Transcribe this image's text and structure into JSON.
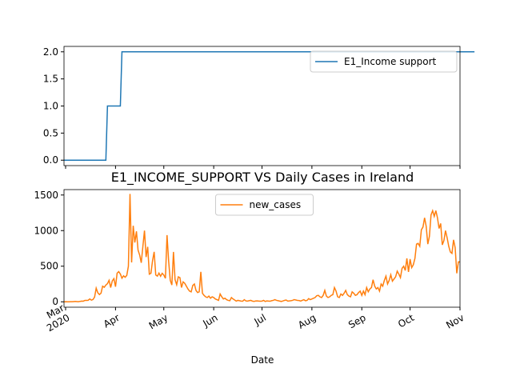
{
  "chart_data": [
    {
      "type": "line",
      "xlim": [
        0,
        246
      ],
      "ylim": [
        -0.1,
        2.1
      ],
      "yticks": [
        {
          "value": 0,
          "label": "0.0"
        },
        {
          "value": 0.5,
          "label": "0.5"
        },
        {
          "value": 1,
          "label": "1.0"
        },
        {
          "value": 1.5,
          "label": "1.5"
        },
        {
          "value": 2,
          "label": "2.0"
        }
      ],
      "legend": "upper right",
      "series": [
        {
          "name": "E1_Income support",
          "color": "#1f77b4",
          "values": [
            0,
            0,
            0,
            0,
            0,
            0,
            0,
            0,
            0,
            0,
            0,
            0,
            0,
            0,
            0,
            0,
            0,
            0,
            0,
            0,
            0,
            0,
            0,
            0,
            0,
            0,
            0,
            1,
            1,
            1,
            1,
            1,
            1,
            1,
            1,
            1,
            2,
            2,
            2,
            2,
            2,
            2,
            2,
            2,
            2,
            2,
            2,
            2,
            2,
            2,
            2,
            2,
            2,
            2,
            2,
            2,
            2,
            2,
            2,
            2,
            2,
            2,
            2,
            2,
            2,
            2,
            2,
            2,
            2,
            2,
            2,
            2,
            2,
            2,
            2,
            2,
            2,
            2,
            2,
            2,
            2,
            2,
            2,
            2,
            2,
            2,
            2,
            2,
            2,
            2,
            2,
            2,
            2,
            2,
            2,
            2,
            2,
            2,
            2,
            2,
            2,
            2,
            2,
            2,
            2,
            2,
            2,
            2,
            2,
            2,
            2,
            2,
            2,
            2,
            2,
            2,
            2,
            2,
            2,
            2,
            2,
            2,
            2,
            2,
            2,
            2,
            2,
            2,
            2,
            2,
            2,
            2,
            2,
            2,
            2,
            2,
            2,
            2,
            2,
            2,
            2,
            2,
            2,
            2,
            2,
            2,
            2,
            2,
            2,
            2,
            2,
            2,
            2,
            2,
            2,
            2,
            2,
            2,
            2,
            2,
            2,
            2,
            2,
            2,
            2,
            2,
            2,
            2,
            2,
            2,
            2,
            2,
            2,
            2,
            2,
            2,
            2,
            2,
            2,
            2,
            2,
            2,
            2,
            2,
            2,
            2,
            2,
            2,
            2,
            2,
            2,
            2,
            2,
            2,
            2,
            2,
            2,
            2,
            2,
            2,
            2,
            2,
            2,
            2,
            2,
            2,
            2,
            2,
            2,
            2,
            2,
            2,
            2,
            2,
            2,
            2,
            2,
            2,
            2,
            2,
            2,
            2,
            2,
            2,
            2,
            2,
            2,
            2,
            2,
            2,
            2,
            2,
            2,
            2,
            2,
            2,
            2,
            2,
            2,
            2,
            2,
            2,
            2,
            2,
            2,
            2,
            2,
            2,
            2,
            2,
            2,
            2,
            2,
            2,
            2,
            2
          ]
        }
      ]
    },
    {
      "type": "line",
      "title": "E1_INCOME_SUPPORT VS Daily Cases in Ireland",
      "x_label": "Date",
      "xlim": [
        0,
        246
      ],
      "ylim": [
        -76,
        1576
      ],
      "yticks": [
        0,
        500,
        1000,
        1500
      ],
      "xticks": [
        {
          "value": 1,
          "label": "Mar\n2020"
        },
        {
          "value": 32,
          "label": "Apr"
        },
        {
          "value": 62,
          "label": "May"
        },
        {
          "value": 93,
          "label": "Jun"
        },
        {
          "value": 123,
          "label": "Jul"
        },
        {
          "value": 154,
          "label": "Aug"
        },
        {
          "value": 185,
          "label": "Sep"
        },
        {
          "value": 215,
          "label": "Oct"
        },
        {
          "value": 246,
          "label": "Nov"
        }
      ],
      "legend": "upper center",
      "series": [
        {
          "name": "new_cases",
          "color": "#ff7f0e",
          "values": [
            0,
            1,
            0,
            0,
            1,
            1,
            3,
            5,
            3,
            1,
            6,
            10,
            9,
            20,
            20,
            21,
            40,
            23,
            32,
            66,
            191,
            126,
            102,
            121,
            219,
            204,
            235,
            255,
            302,
            200,
            294,
            325,
            212,
            402,
            424,
            390,
            331,
            365,
            345,
            370,
            500,
            1515,
            553,
            1068,
            832,
            990,
            727,
            657,
            548,
            779,
            1000,
            629,
            772,
            388,
            400,
            577,
            701,
            376,
            360,
            403,
            359,
            400,
            376,
            330,
            936,
            572,
            302,
            236,
            700,
            310,
            240,
            350,
            340,
            200,
            280,
            260,
            220,
            180,
            150,
            140,
            230,
            250,
            160,
            130,
            140,
            420,
            120,
            90,
            70,
            60,
            80,
            50,
            70,
            60,
            40,
            30,
            20,
            110,
            70,
            40,
            50,
            30,
            20,
            15,
            60,
            40,
            25,
            10,
            20,
            15,
            10,
            8,
            30,
            12,
            10,
            15,
            20,
            10,
            5,
            11,
            12,
            10,
            8,
            10,
            20,
            5,
            12,
            10,
            8,
            15,
            20,
            30,
            20,
            15,
            10,
            5,
            12,
            20,
            25,
            10,
            12,
            15,
            20,
            30,
            25,
            20,
            18,
            10,
            20,
            30,
            15,
            20,
            45,
            30,
            40,
            50,
            60,
            85,
            90,
            70,
            60,
            90,
            160,
            80,
            60,
            70,
            90,
            100,
            200,
            150,
            70,
            60,
            110,
            90,
            120,
            160,
            100,
            80,
            70,
            140,
            120,
            90,
            100,
            130,
            150,
            90,
            150,
            100,
            200,
            140,
            180,
            200,
            310,
            220,
            180,
            200,
            150,
            250,
            220,
            300,
            360,
            250,
            300,
            380,
            290,
            320,
            350,
            430,
            390,
            340,
            470,
            500,
            440,
            610,
            420,
            600,
            480,
            520,
            610,
            810,
            820,
            780,
            1012,
            1050,
            1180,
            1060,
            810,
            920,
            1220,
            1280,
            1200,
            1280,
            1180,
            1030,
            1100,
            800,
            860,
            1000,
            900,
            780,
            700,
            680,
            870,
            760,
            400,
            560,
            560
          ]
        }
      ]
    }
  ]
}
